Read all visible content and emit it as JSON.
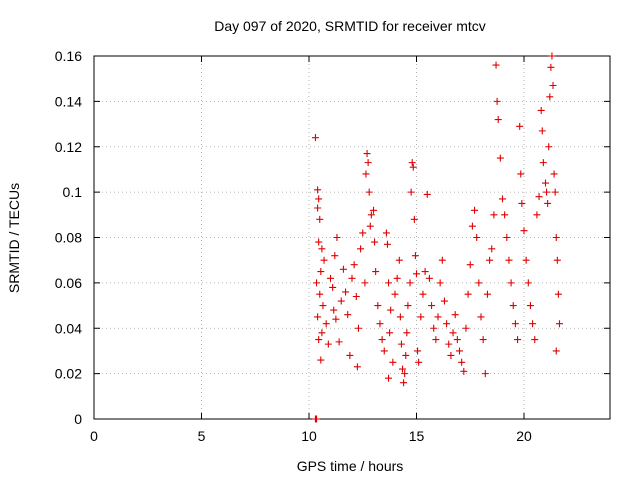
{
  "chart_data": {
    "type": "scatter",
    "title": "Day 097 of 2020, SRMTID for receiver mtcv",
    "xlabel": "GPS time / hours",
    "ylabel": "SRMTID / TECUs",
    "xlim": [
      0,
      24
    ],
    "ylim": [
      0,
      0.16
    ],
    "x_ticks": [
      "0",
      "5",
      "10",
      "15",
      "20"
    ],
    "y_ticks": [
      "0",
      "0.02",
      "0.04",
      "0.06",
      "0.08",
      "0.1",
      "0.12",
      "0.14",
      "0.16"
    ],
    "x_tick_values": [
      0,
      5,
      10,
      15,
      20
    ],
    "y_tick_values": [
      0,
      0.02,
      0.04,
      0.06,
      0.08,
      0.1,
      0.12,
      0.14,
      0.16
    ],
    "grid": true,
    "marker": "+",
    "color": "#e00000",
    "series": [
      {
        "name": "mtcv",
        "points": [
          [
            10.3,
            0.0
          ],
          [
            10.35,
            0.0
          ],
          [
            10.3,
            0.124
          ],
          [
            10.4,
            0.101
          ],
          [
            10.45,
            0.097
          ],
          [
            10.4,
            0.093
          ],
          [
            10.5,
            0.088
          ],
          [
            10.45,
            0.078
          ],
          [
            10.6,
            0.075
          ],
          [
            10.7,
            0.07
          ],
          [
            10.55,
            0.065
          ],
          [
            10.35,
            0.06
          ],
          [
            10.5,
            0.055
          ],
          [
            10.65,
            0.05
          ],
          [
            10.4,
            0.045
          ],
          [
            10.8,
            0.042
          ],
          [
            10.6,
            0.038
          ],
          [
            10.45,
            0.035
          ],
          [
            10.9,
            0.033
          ],
          [
            10.55,
            0.026
          ],
          [
            11.0,
            0.062
          ],
          [
            11.1,
            0.058
          ],
          [
            11.2,
            0.072
          ],
          [
            11.3,
            0.08
          ],
          [
            11.15,
            0.048
          ],
          [
            11.25,
            0.044
          ],
          [
            11.4,
            0.034
          ],
          [
            11.5,
            0.052
          ],
          [
            11.6,
            0.066
          ],
          [
            11.7,
            0.056
          ],
          [
            11.8,
            0.046
          ],
          [
            11.9,
            0.028
          ],
          [
            12.0,
            0.062
          ],
          [
            12.1,
            0.068
          ],
          [
            12.2,
            0.054
          ],
          [
            12.3,
            0.04
          ],
          [
            12.25,
            0.023
          ],
          [
            12.4,
            0.075
          ],
          [
            12.5,
            0.082
          ],
          [
            12.6,
            0.06
          ],
          [
            12.7,
            0.117
          ],
          [
            12.75,
            0.113
          ],
          [
            12.65,
            0.108
          ],
          [
            12.8,
            0.1
          ],
          [
            12.9,
            0.09
          ],
          [
            12.85,
            0.085
          ],
          [
            13.0,
            0.092
          ],
          [
            13.05,
            0.078
          ],
          [
            13.1,
            0.065
          ],
          [
            13.2,
            0.05
          ],
          [
            13.3,
            0.042
          ],
          [
            13.4,
            0.035
          ],
          [
            13.5,
            0.03
          ],
          [
            13.6,
            0.082
          ],
          [
            13.65,
            0.077
          ],
          [
            13.7,
            0.06
          ],
          [
            13.8,
            0.048
          ],
          [
            13.75,
            0.038
          ],
          [
            13.9,
            0.025
          ],
          [
            13.7,
            0.018
          ],
          [
            14.0,
            0.055
          ],
          [
            14.1,
            0.062
          ],
          [
            14.2,
            0.07
          ],
          [
            14.25,
            0.045
          ],
          [
            14.3,
            0.033
          ],
          [
            14.35,
            0.022
          ],
          [
            14.4,
            0.016
          ],
          [
            14.45,
            0.02
          ],
          [
            14.5,
            0.028
          ],
          [
            14.55,
            0.038
          ],
          [
            14.6,
            0.05
          ],
          [
            14.7,
            0.06
          ],
          [
            14.75,
            0.1
          ],
          [
            14.8,
            0.113
          ],
          [
            14.85,
            0.111
          ],
          [
            14.9,
            0.088
          ],
          [
            14.95,
            0.072
          ],
          [
            15.0,
            0.064
          ],
          [
            15.05,
            0.03
          ],
          [
            15.1,
            0.025
          ],
          [
            15.2,
            0.045
          ],
          [
            15.3,
            0.055
          ],
          [
            15.4,
            0.065
          ],
          [
            15.5,
            0.099
          ],
          [
            15.6,
            0.062
          ],
          [
            15.7,
            0.05
          ],
          [
            15.8,
            0.04
          ],
          [
            15.9,
            0.035
          ],
          [
            16.0,
            0.045
          ],
          [
            16.1,
            0.06
          ],
          [
            16.2,
            0.07
          ],
          [
            16.3,
            0.052
          ],
          [
            16.4,
            0.042
          ],
          [
            16.5,
            0.033
          ],
          [
            16.6,
            0.028
          ],
          [
            16.7,
            0.038
          ],
          [
            16.8,
            0.046
          ],
          [
            16.9,
            0.035
          ],
          [
            17.0,
            0.03
          ],
          [
            17.1,
            0.025
          ],
          [
            17.2,
            0.021
          ],
          [
            17.3,
            0.04
          ],
          [
            17.4,
            0.055
          ],
          [
            17.5,
            0.068
          ],
          [
            17.6,
            0.085
          ],
          [
            17.7,
            0.092
          ],
          [
            17.8,
            0.08
          ],
          [
            17.9,
            0.06
          ],
          [
            18.0,
            0.045
          ],
          [
            18.1,
            0.035
          ],
          [
            18.2,
            0.02
          ],
          [
            18.3,
            0.055
          ],
          [
            18.4,
            0.07
          ],
          [
            18.5,
            0.075
          ],
          [
            18.6,
            0.09
          ],
          [
            18.7,
            0.156
          ],
          [
            18.75,
            0.14
          ],
          [
            18.8,
            0.132
          ],
          [
            18.9,
            0.115
          ],
          [
            19.0,
            0.097
          ],
          [
            19.1,
            0.09
          ],
          [
            19.2,
            0.08
          ],
          [
            19.3,
            0.07
          ],
          [
            19.4,
            0.06
          ],
          [
            19.5,
            0.05
          ],
          [
            19.6,
            0.042
          ],
          [
            19.7,
            0.035
          ],
          [
            19.8,
            0.129
          ],
          [
            19.85,
            0.108
          ],
          [
            19.9,
            0.095
          ],
          [
            20.0,
            0.083
          ],
          [
            20.1,
            0.07
          ],
          [
            20.2,
            0.06
          ],
          [
            20.3,
            0.05
          ],
          [
            20.4,
            0.042
          ],
          [
            20.5,
            0.035
          ],
          [
            20.6,
            0.09
          ],
          [
            20.7,
            0.098
          ],
          [
            20.8,
            0.136
          ],
          [
            20.85,
            0.127
          ],
          [
            20.9,
            0.113
          ],
          [
            21.0,
            0.104
          ],
          [
            21.05,
            0.1
          ],
          [
            21.1,
            0.095
          ],
          [
            21.15,
            0.12
          ],
          [
            21.2,
            0.142
          ],
          [
            21.25,
            0.155
          ],
          [
            21.3,
            0.16
          ],
          [
            21.35,
            0.147
          ],
          [
            21.4,
            0.108
          ],
          [
            21.45,
            0.1
          ],
          [
            21.5,
            0.08
          ],
          [
            21.55,
            0.07
          ],
          [
            21.6,
            0.055
          ],
          [
            21.65,
            0.042
          ],
          [
            21.5,
            0.03
          ]
        ]
      }
    ]
  }
}
